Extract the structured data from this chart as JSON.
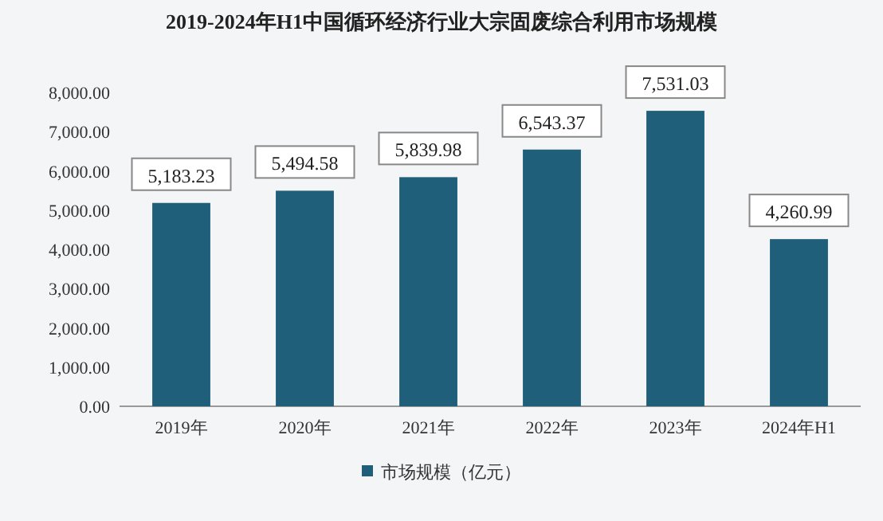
{
  "chart_data": {
    "type": "bar",
    "title": "2019-2024年H1中国循环经济行业大宗固废综合利用市场规模",
    "categories": [
      "2019年",
      "2020年",
      "2021年",
      "2022年",
      "2023年",
      "2024年H1"
    ],
    "series": [
      {
        "name": "市场规模（亿元）",
        "color": "#1f5f7a",
        "values": [
          5183.23,
          5494.58,
          5839.98,
          6543.37,
          7531.03,
          4260.99
        ],
        "value_labels": [
          "5,183.23",
          "5,494.58",
          "5,839.98",
          "6,543.37",
          "7,531.03",
          "4,260.99"
        ]
      }
    ],
    "ylim": [
      0,
      8000
    ],
    "yticks": [
      {
        "value": 0,
        "label": "0.00"
      },
      {
        "value": 1000,
        "label": "1,000.00"
      },
      {
        "value": 2000,
        "label": "2,000.00"
      },
      {
        "value": 3000,
        "label": "3,000.00"
      },
      {
        "value": 4000,
        "label": "4,000.00"
      },
      {
        "value": 5000,
        "label": "5,000.00"
      },
      {
        "value": 6000,
        "label": "6,000.00"
      },
      {
        "value": 7000,
        "label": "7,000.00"
      },
      {
        "value": 8000,
        "label": "8,000.00"
      }
    ],
    "legend": "bottom"
  }
}
